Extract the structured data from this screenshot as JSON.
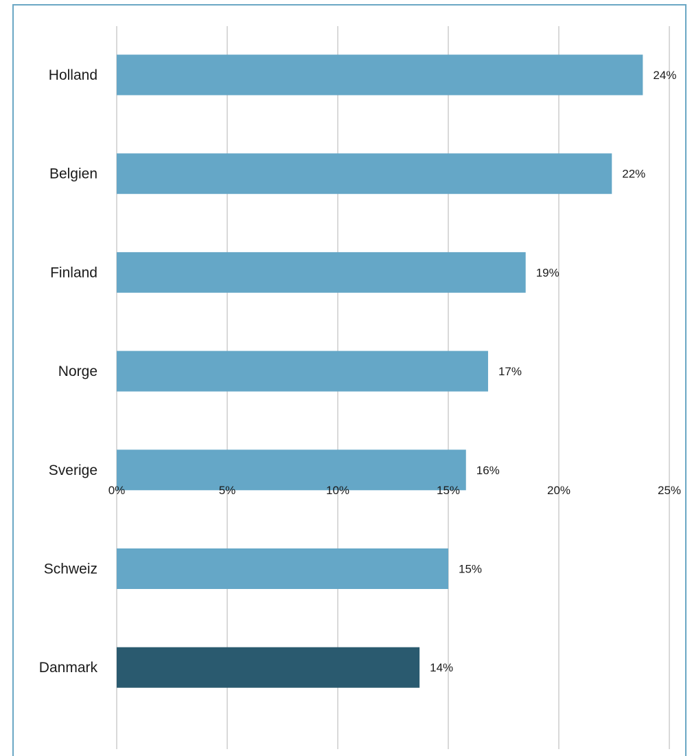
{
  "title": "",
  "colors": {
    "bar": "#65a7c7",
    "highlight": "#2a5a6f",
    "grid": "#d9d9d9",
    "frame": "#6aa7c4"
  },
  "chart_data": {
    "type": "bar",
    "orientation": "horizontal",
    "title": "",
    "xlabel": "",
    "ylabel": "",
    "categories": [
      "Holland",
      "Belgien",
      "Finland",
      "Norge",
      "Sverige",
      "Schweiz",
      "Danmark"
    ],
    "values": [
      23.8,
      22.4,
      18.5,
      16.8,
      15.8,
      15.0,
      13.7
    ],
    "value_labels": [
      "24%",
      "22%",
      "19%",
      "17%",
      "16%",
      "15%",
      "14%"
    ],
    "highlight_category": "Danmark",
    "xlim": [
      0,
      25
    ],
    "xticks": [
      0,
      5,
      10,
      15,
      20,
      25
    ],
    "xtick_labels": [
      "0%",
      "5%",
      "10%",
      "15%",
      "20%",
      "25%"
    ],
    "grid": true,
    "legend": "none"
  }
}
